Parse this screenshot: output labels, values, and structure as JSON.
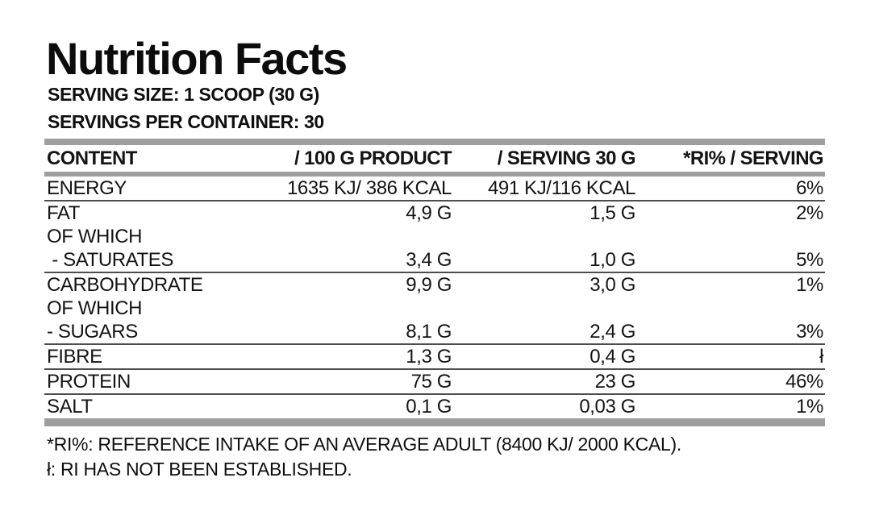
{
  "header": {
    "title": "Nutrition Facts",
    "serving_size": "SERVING SIZE: 1 SCOOP (30 G)",
    "servings_per_container": "SERVINGS PER CONTAINER: 30"
  },
  "table": {
    "columns": [
      "CONTENT",
      "/ 100 G PRODUCT",
      "/ SERVING 30 G",
      "*RI% / SERVING"
    ],
    "rows": [
      {
        "content": "ENERGY",
        "per_100g": "1635 KJ/ 386 KCAL",
        "per_serving": "491 KJ/116 KCAL",
        "ri_percent": "6%",
        "separator_after": true
      },
      {
        "content": "FAT",
        "per_100g": "4,9 G",
        "per_serving": "1,5 G",
        "ri_percent": "2%",
        "separator_after": false
      },
      {
        "content": "OF WHICH",
        "per_100g": "",
        "per_serving": "",
        "ri_percent": "",
        "separator_after": false
      },
      {
        "content": " - SATURATES",
        "per_100g": "3,4 G",
        "per_serving": "1,0 G",
        "ri_percent": "5%",
        "separator_after": true
      },
      {
        "content": "CARBOHYDRATE",
        "per_100g": "9,9 G",
        "per_serving": "3,0 G",
        "ri_percent": "1%",
        "separator_after": false
      },
      {
        "content": "OF WHICH",
        "per_100g": "",
        "per_serving": "",
        "ri_percent": "",
        "separator_after": false
      },
      {
        "content": "- SUGARS",
        "per_100g": "8,1 G",
        "per_serving": "2,4 G",
        "ri_percent": "3%",
        "separator_after": true
      },
      {
        "content": "FIBRE",
        "per_100g": "1,3 G",
        "per_serving": "0,4 G",
        "ri_percent": "ł",
        "separator_after": true
      },
      {
        "content": "PROTEIN",
        "per_100g": "75 G",
        "per_serving": "23 G",
        "ri_percent": "46%",
        "separator_after": true
      },
      {
        "content": "SALT",
        "per_100g": "0,1 G",
        "per_serving": "0,03 G",
        "ri_percent": "1%",
        "separator_after": false
      }
    ]
  },
  "footnotes": [
    "*RI%: REFERENCE INTAKE OF AN AVERAGE ADULT (8400 KJ/ 2000 KCAL).",
    "ł: RI HAS NOT BEEN ESTABLISHED."
  ]
}
